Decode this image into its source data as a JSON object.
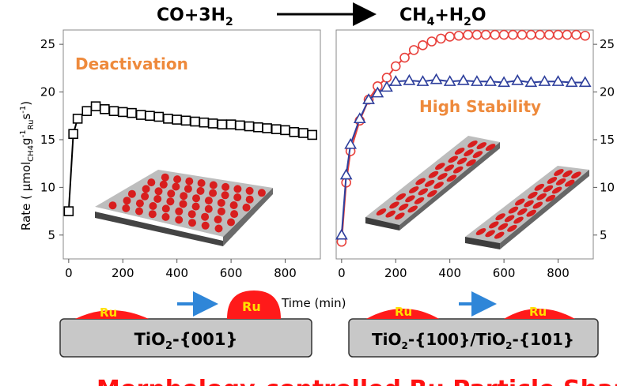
{
  "reaction": {
    "reactants": "CO+3H",
    "reactants_sub": "2",
    "products_a": "CH",
    "products_a_sub": "4",
    "products_b": "+H",
    "products_b_sub": "2",
    "products_c": "O"
  },
  "colors": {
    "left_series": "#000000",
    "red_series": "#e8413c",
    "blue_series": "#2e3f9c",
    "annotation_orange": "#ee8a3c",
    "particle_red": "#d81e1e",
    "ru_red": "#ff1a1a",
    "ru_yellow": "#ffe000",
    "arrow_blue": "#2f86d8",
    "support_gray": "#c8c8c8",
    "headline_red": "#ff1010"
  },
  "chart_data": [
    {
      "type": "line",
      "panel": "left",
      "ylabel": "Rate ( μmol",
      "ylabel_sub1": "CH4",
      "ylabel_mid": "g",
      "ylabel_sup": "-1",
      "ylabel_sub2": "Ru",
      "ylabel_end": "s",
      "ylabel_sup2": "-1",
      "ylabel_close": ")",
      "ylim": [
        2.5,
        26.5
      ],
      "xlim": [
        -20,
        930
      ],
      "yticks": [
        "5",
        "10",
        "15",
        "20",
        "25"
      ],
      "xticks": [
        "0",
        "200",
        "400",
        "600",
        "800"
      ],
      "annotation": "Deactivation",
      "series": [
        {
          "marker": "square",
          "x": [
            0,
            17,
            33,
            67,
            100,
            133,
            167,
            200,
            233,
            267,
            300,
            333,
            367,
            400,
            433,
            467,
            500,
            533,
            567,
            600,
            633,
            667,
            700,
            733,
            767,
            800,
            833,
            867,
            900
          ],
          "y": [
            7.5,
            15.6,
            17.2,
            18.0,
            18.5,
            18.2,
            18.0,
            17.9,
            17.8,
            17.6,
            17.5,
            17.4,
            17.2,
            17.1,
            17.0,
            16.9,
            16.8,
            16.7,
            16.6,
            16.6,
            16.5,
            16.4,
            16.3,
            16.2,
            16.1,
            16.0,
            15.8,
            15.7,
            15.5
          ]
        }
      ]
    },
    {
      "type": "line",
      "panel": "right",
      "xlabel": "Time (min)",
      "ylim": [
        2.5,
        26.5
      ],
      "xlim": [
        -20,
        930
      ],
      "yticks": [
        "5",
        "10",
        "15",
        "20",
        "25"
      ],
      "xticks": [
        "0",
        "200",
        "400",
        "600",
        "800"
      ],
      "annotation": "High Stability",
      "series": [
        {
          "marker": "circle",
          "color": "red",
          "x": [
            0,
            17,
            33,
            67,
            100,
            133,
            167,
            200,
            233,
            267,
            300,
            333,
            367,
            400,
            433,
            467,
            500,
            533,
            567,
            600,
            633,
            667,
            700,
            733,
            767,
            800,
            833,
            867,
            900
          ],
          "y": [
            4.3,
            10.5,
            13.8,
            17.0,
            19.2,
            20.6,
            21.5,
            22.7,
            23.6,
            24.4,
            24.9,
            25.3,
            25.6,
            25.8,
            25.9,
            26.0,
            26.0,
            26.0,
            26.0,
            26.0,
            26.0,
            26.0,
            26.0,
            26.0,
            26.0,
            26.0,
            26.0,
            26.0,
            25.9
          ]
        },
        {
          "marker": "triangle",
          "color": "blue",
          "x": [
            0,
            17,
            33,
            67,
            100,
            133,
            167,
            200,
            250,
            300,
            350,
            400,
            450,
            500,
            550,
            600,
            650,
            700,
            750,
            800,
            850,
            900
          ],
          "y": [
            5.0,
            11.3,
            14.5,
            17.2,
            19.2,
            19.9,
            20.5,
            21.1,
            21.2,
            21.1,
            21.3,
            21.1,
            21.2,
            21.1,
            21.1,
            21.0,
            21.2,
            21.0,
            21.1,
            21.1,
            21.0,
            21.0
          ]
        }
      ]
    }
  ],
  "schematic": {
    "ru_label": "Ru",
    "support_left_label": "TiO",
    "support_left_sub": "2",
    "support_left_suffix": "-{001}",
    "support_right_a": "TiO",
    "support_right_a_sub": "2",
    "support_right_mid": "-{100}/TiO",
    "support_right_b_sub": "2",
    "support_right_suffix": "-{101}"
  },
  "headline": "Morphology-controlled Ru Particle Shape"
}
